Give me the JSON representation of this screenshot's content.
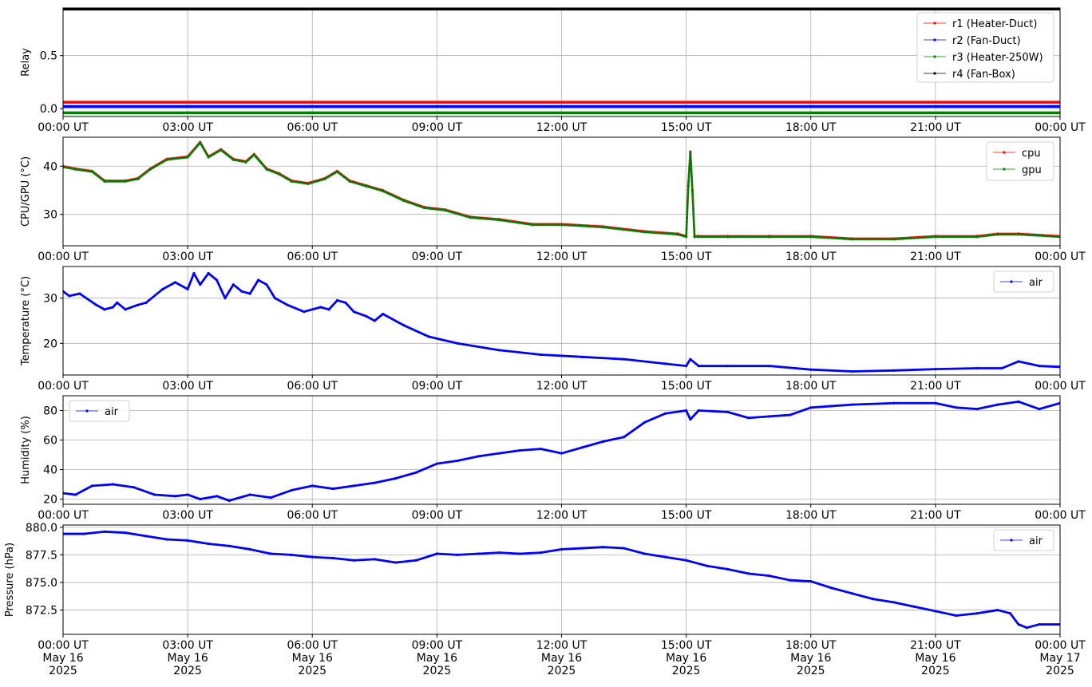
{
  "chart_data": [
    {
      "type": "line",
      "ylabel": "Relay",
      "ylim": [
        -0.075,
        0.95
      ],
      "yticks": [
        0.0,
        0.5
      ],
      "ytick_labels": [
        "0.0",
        "0.5"
      ],
      "xtick_labels": [
        "00:00 UT",
        "03:00 UT",
        "06:00 UT",
        "09:00 UT",
        "12:00 UT",
        "15:00 UT",
        "18:00 UT",
        "21:00 UT",
        "00:00 UT"
      ],
      "grid": true,
      "legend_position": "top-right",
      "x_range_hours": [
        0,
        24
      ],
      "series": [
        {
          "name": "r1 (Heater-Duct)",
          "color": "#ff0000",
          "x": [
            0,
            24
          ],
          "y": [
            0.06,
            0.06
          ]
        },
        {
          "name": "r2 (Fan-Duct)",
          "color": "#0000ff",
          "x": [
            0,
            24
          ],
          "y": [
            0.02,
            0.02
          ]
        },
        {
          "name": "r3 (Heater-250W)",
          "color": "#008000",
          "x": [
            0,
            24
          ],
          "y": [
            -0.04,
            -0.04
          ]
        },
        {
          "name": "r4 (Fan-Box)",
          "color": "#000000",
          "x": [
            0,
            24
          ],
          "y": [
            0.94,
            0.94
          ]
        }
      ]
    },
    {
      "type": "line",
      "ylabel": "CPU/GPU (°C)",
      "ylim": [
        23.5,
        46
      ],
      "yticks": [
        30,
        40
      ],
      "ytick_labels": [
        "30",
        "40"
      ],
      "xtick_labels": [
        "00:00 UT",
        "03:00 UT",
        "06:00 UT",
        "09:00 UT",
        "12:00 UT",
        "15:00 UT",
        "18:00 UT",
        "21:00 UT",
        "00:00 UT"
      ],
      "grid": true,
      "legend_position": "top-right",
      "x_range_hours": [
        0,
        24
      ],
      "series": [
        {
          "name": "cpu",
          "color": "#ff0000",
          "x": [
            0,
            0.3,
            0.7,
            1.0,
            1.5,
            1.8,
            2.1,
            2.5,
            3.0,
            3.3,
            3.5,
            3.8,
            4.1,
            4.4,
            4.6,
            4.9,
            5.2,
            5.5,
            5.9,
            6.3,
            6.6,
            6.9,
            7.3,
            7.7,
            8.2,
            8.7,
            9.2,
            9.8,
            10.5,
            11.3,
            12.0,
            13.0,
            14.0,
            14.8,
            15.0,
            15.05,
            15.1,
            15.15,
            15.2,
            15.3,
            16.0,
            17.0,
            18.0,
            19.0,
            20.0,
            21.0,
            22.0,
            22.5,
            23.0,
            24.0
          ],
          "y": [
            40,
            39.5,
            39,
            37,
            37,
            37.5,
            39.5,
            41.5,
            42,
            45,
            42,
            43.5,
            41.5,
            41,
            42.5,
            39.5,
            38.5,
            37,
            36.5,
            37.5,
            39,
            37,
            36,
            35,
            33,
            31.5,
            31,
            29.5,
            29,
            28,
            28,
            27.5,
            26.5,
            26,
            25.5,
            36,
            43,
            35,
            25.5,
            25.5,
            25.5,
            25.5,
            25.5,
            25,
            25,
            25.5,
            25.5,
            26,
            26,
            25.5
          ]
        },
        {
          "name": "gpu",
          "color": "#008000",
          "x": [
            0,
            0.3,
            0.7,
            1.0,
            1.5,
            1.8,
            2.1,
            2.5,
            3.0,
            3.3,
            3.5,
            3.8,
            4.1,
            4.4,
            4.6,
            4.9,
            5.2,
            5.5,
            5.9,
            6.3,
            6.6,
            6.9,
            7.3,
            7.7,
            8.2,
            8.7,
            9.2,
            9.8,
            10.5,
            11.3,
            12.0,
            13.0,
            14.0,
            14.8,
            15.0,
            15.05,
            15.1,
            15.15,
            15.2,
            15.3,
            16.0,
            17.0,
            18.0,
            19.0,
            20.0,
            21.0,
            22.0,
            22.5,
            23.0,
            24.0
          ],
          "y": [
            40,
            39.5,
            39,
            37,
            37,
            37.5,
            39.5,
            41.5,
            42,
            45,
            42,
            43.5,
            41.5,
            41,
            42.5,
            39.5,
            38.5,
            37,
            36.5,
            37.5,
            39,
            37,
            36,
            35,
            33,
            31.5,
            31,
            29.5,
            29,
            28,
            28,
            27.5,
            26.5,
            26,
            25.5,
            36,
            43,
            35,
            25.5,
            25.5,
            25.5,
            25.5,
            25.5,
            25,
            25,
            25.5,
            25.5,
            26,
            26,
            25.5
          ]
        }
      ]
    },
    {
      "type": "line",
      "ylabel": "Temperature (°C)",
      "ylim": [
        13,
        37
      ],
      "yticks": [
        20,
        30
      ],
      "ytick_labels": [
        "20",
        "30"
      ],
      "xtick_labels": [
        "00:00 UT",
        "03:00 UT",
        "06:00 UT",
        "09:00 UT",
        "12:00 UT",
        "15:00 UT",
        "18:00 UT",
        "21:00 UT",
        "00:00 UT"
      ],
      "grid": true,
      "legend_position": "top-right",
      "x_range_hours": [
        0,
        24
      ],
      "series": [
        {
          "name": "air",
          "color": "#0000ff",
          "x": [
            0,
            0.15,
            0.4,
            0.8,
            1.0,
            1.2,
            1.3,
            1.5,
            1.8,
            2.0,
            2.4,
            2.7,
            3.0,
            3.15,
            3.3,
            3.5,
            3.7,
            3.9,
            4.1,
            4.3,
            4.5,
            4.7,
            4.9,
            5.1,
            5.4,
            5.8,
            6.2,
            6.4,
            6.6,
            6.8,
            7.0,
            7.3,
            7.5,
            7.7,
            8.2,
            8.8,
            9.5,
            10.5,
            11.5,
            12.5,
            13.5,
            14.5,
            15.0,
            15.1,
            15.3,
            16.0,
            17.0,
            18.0,
            19.0,
            20.0,
            21.0,
            22.0,
            22.6,
            23.0,
            23.5,
            24.0
          ],
          "y": [
            31.5,
            30.5,
            31,
            28.5,
            27.5,
            28,
            29,
            27.5,
            28.5,
            29,
            32,
            33.5,
            32,
            35.5,
            33,
            35.5,
            34,
            30,
            33,
            31.5,
            31,
            34,
            33,
            30,
            28.5,
            27,
            28,
            27.5,
            29.5,
            29,
            27,
            26,
            25,
            26.5,
            24,
            21.5,
            20,
            18.5,
            17.5,
            17,
            16.5,
            15.5,
            15,
            16.5,
            15,
            15,
            15,
            14.2,
            13.8,
            14,
            14.3,
            14.5,
            14.5,
            16,
            15,
            14.8
          ]
        }
      ]
    },
    {
      "type": "line",
      "ylabel": "Humidity (%)",
      "ylim": [
        16.5,
        90
      ],
      "yticks": [
        20,
        40,
        60,
        80
      ],
      "ytick_labels": [
        "20",
        "40",
        "60",
        "80"
      ],
      "xtick_labels": [
        "00:00 UT",
        "03:00 UT",
        "06:00 UT",
        "09:00 UT",
        "12:00 UT",
        "15:00 UT",
        "18:00 UT",
        "21:00 UT",
        "00:00 UT"
      ],
      "grid": true,
      "legend_position": "top-left",
      "x_range_hours": [
        0,
        24
      ],
      "series": [
        {
          "name": "air",
          "color": "#0000ff",
          "x": [
            0,
            0.3,
            0.7,
            1.2,
            1.7,
            2.2,
            2.7,
            3.0,
            3.3,
            3.7,
            4.0,
            4.5,
            5.0,
            5.5,
            6.0,
            6.5,
            7.0,
            7.5,
            8.0,
            8.5,
            9.0,
            9.5,
            10.0,
            10.5,
            11.0,
            11.5,
            12.0,
            12.5,
            13.0,
            13.5,
            14.0,
            14.5,
            15.0,
            15.1,
            15.3,
            16.0,
            16.5,
            17.0,
            17.5,
            18.0,
            18.5,
            19.0,
            20.0,
            21.0,
            21.5,
            22.0,
            22.5,
            23.0,
            23.5,
            24.0
          ],
          "y": [
            24,
            23,
            29,
            30,
            28,
            23,
            22,
            23,
            20,
            22,
            19,
            23,
            21,
            26,
            29,
            27,
            29,
            31,
            34,
            38,
            44,
            46,
            49,
            51,
            53,
            54,
            51,
            55,
            59,
            62,
            72,
            78,
            80,
            74,
            80,
            79,
            75,
            76,
            77,
            82,
            83,
            84,
            85,
            85,
            82,
            81,
            84,
            86,
            81,
            85
          ]
        }
      ]
    },
    {
      "type": "line",
      "ylabel": "Pressure (hPa)",
      "ylim": [
        870.3,
        880.2
      ],
      "yticks": [
        872.5,
        875.0,
        877.5,
        880.0
      ],
      "ytick_labels": [
        "872.5",
        "875.0",
        "877.5",
        "880.0"
      ],
      "xtick_labels": [
        "00:00 UT\nMay 16\n2025",
        "03:00 UT\nMay 16\n2025",
        "06:00 UT\nMay 16\n2025",
        "09:00 UT\nMay 16\n2025",
        "12:00 UT\nMay 16\n2025",
        "15:00 UT\nMay 16\n2025",
        "18:00 UT\nMay 16\n2025",
        "21:00 UT\nMay 16\n2025",
        "00:00 UT\nMay 17\n2025"
      ],
      "grid": true,
      "legend_position": "top-right",
      "x_range_hours": [
        0,
        24
      ],
      "series": [
        {
          "name": "air",
          "color": "#0000ff",
          "x": [
            0,
            0.5,
            1.0,
            1.5,
            2.0,
            2.5,
            3.0,
            3.5,
            4.0,
            4.5,
            5.0,
            5.5,
            6.0,
            6.5,
            7.0,
            7.5,
            8.0,
            8.5,
            9.0,
            9.5,
            10.0,
            10.5,
            11.0,
            11.5,
            12.0,
            12.5,
            13.0,
            13.5,
            14.0,
            14.5,
            15.0,
            15.5,
            16.0,
            16.5,
            17.0,
            17.5,
            18.0,
            18.5,
            19.0,
            19.5,
            20.0,
            20.5,
            21.0,
            21.5,
            22.0,
            22.5,
            22.8,
            23.0,
            23.2,
            23.5,
            24.0
          ],
          "y": [
            879.4,
            879.4,
            879.6,
            879.5,
            879.2,
            878.9,
            878.8,
            878.5,
            878.3,
            878.0,
            877.6,
            877.5,
            877.3,
            877.2,
            877.0,
            877.1,
            876.8,
            877.0,
            877.6,
            877.5,
            877.6,
            877.7,
            877.6,
            877.7,
            878.0,
            878.1,
            878.2,
            878.1,
            877.6,
            877.3,
            877.0,
            876.5,
            876.2,
            875.8,
            875.6,
            875.2,
            875.1,
            874.5,
            874.0,
            873.5,
            873.2,
            872.8,
            872.4,
            872.0,
            872.2,
            872.5,
            872.2,
            871.2,
            870.9,
            871.2,
            871.2
          ]
        }
      ]
    }
  ]
}
